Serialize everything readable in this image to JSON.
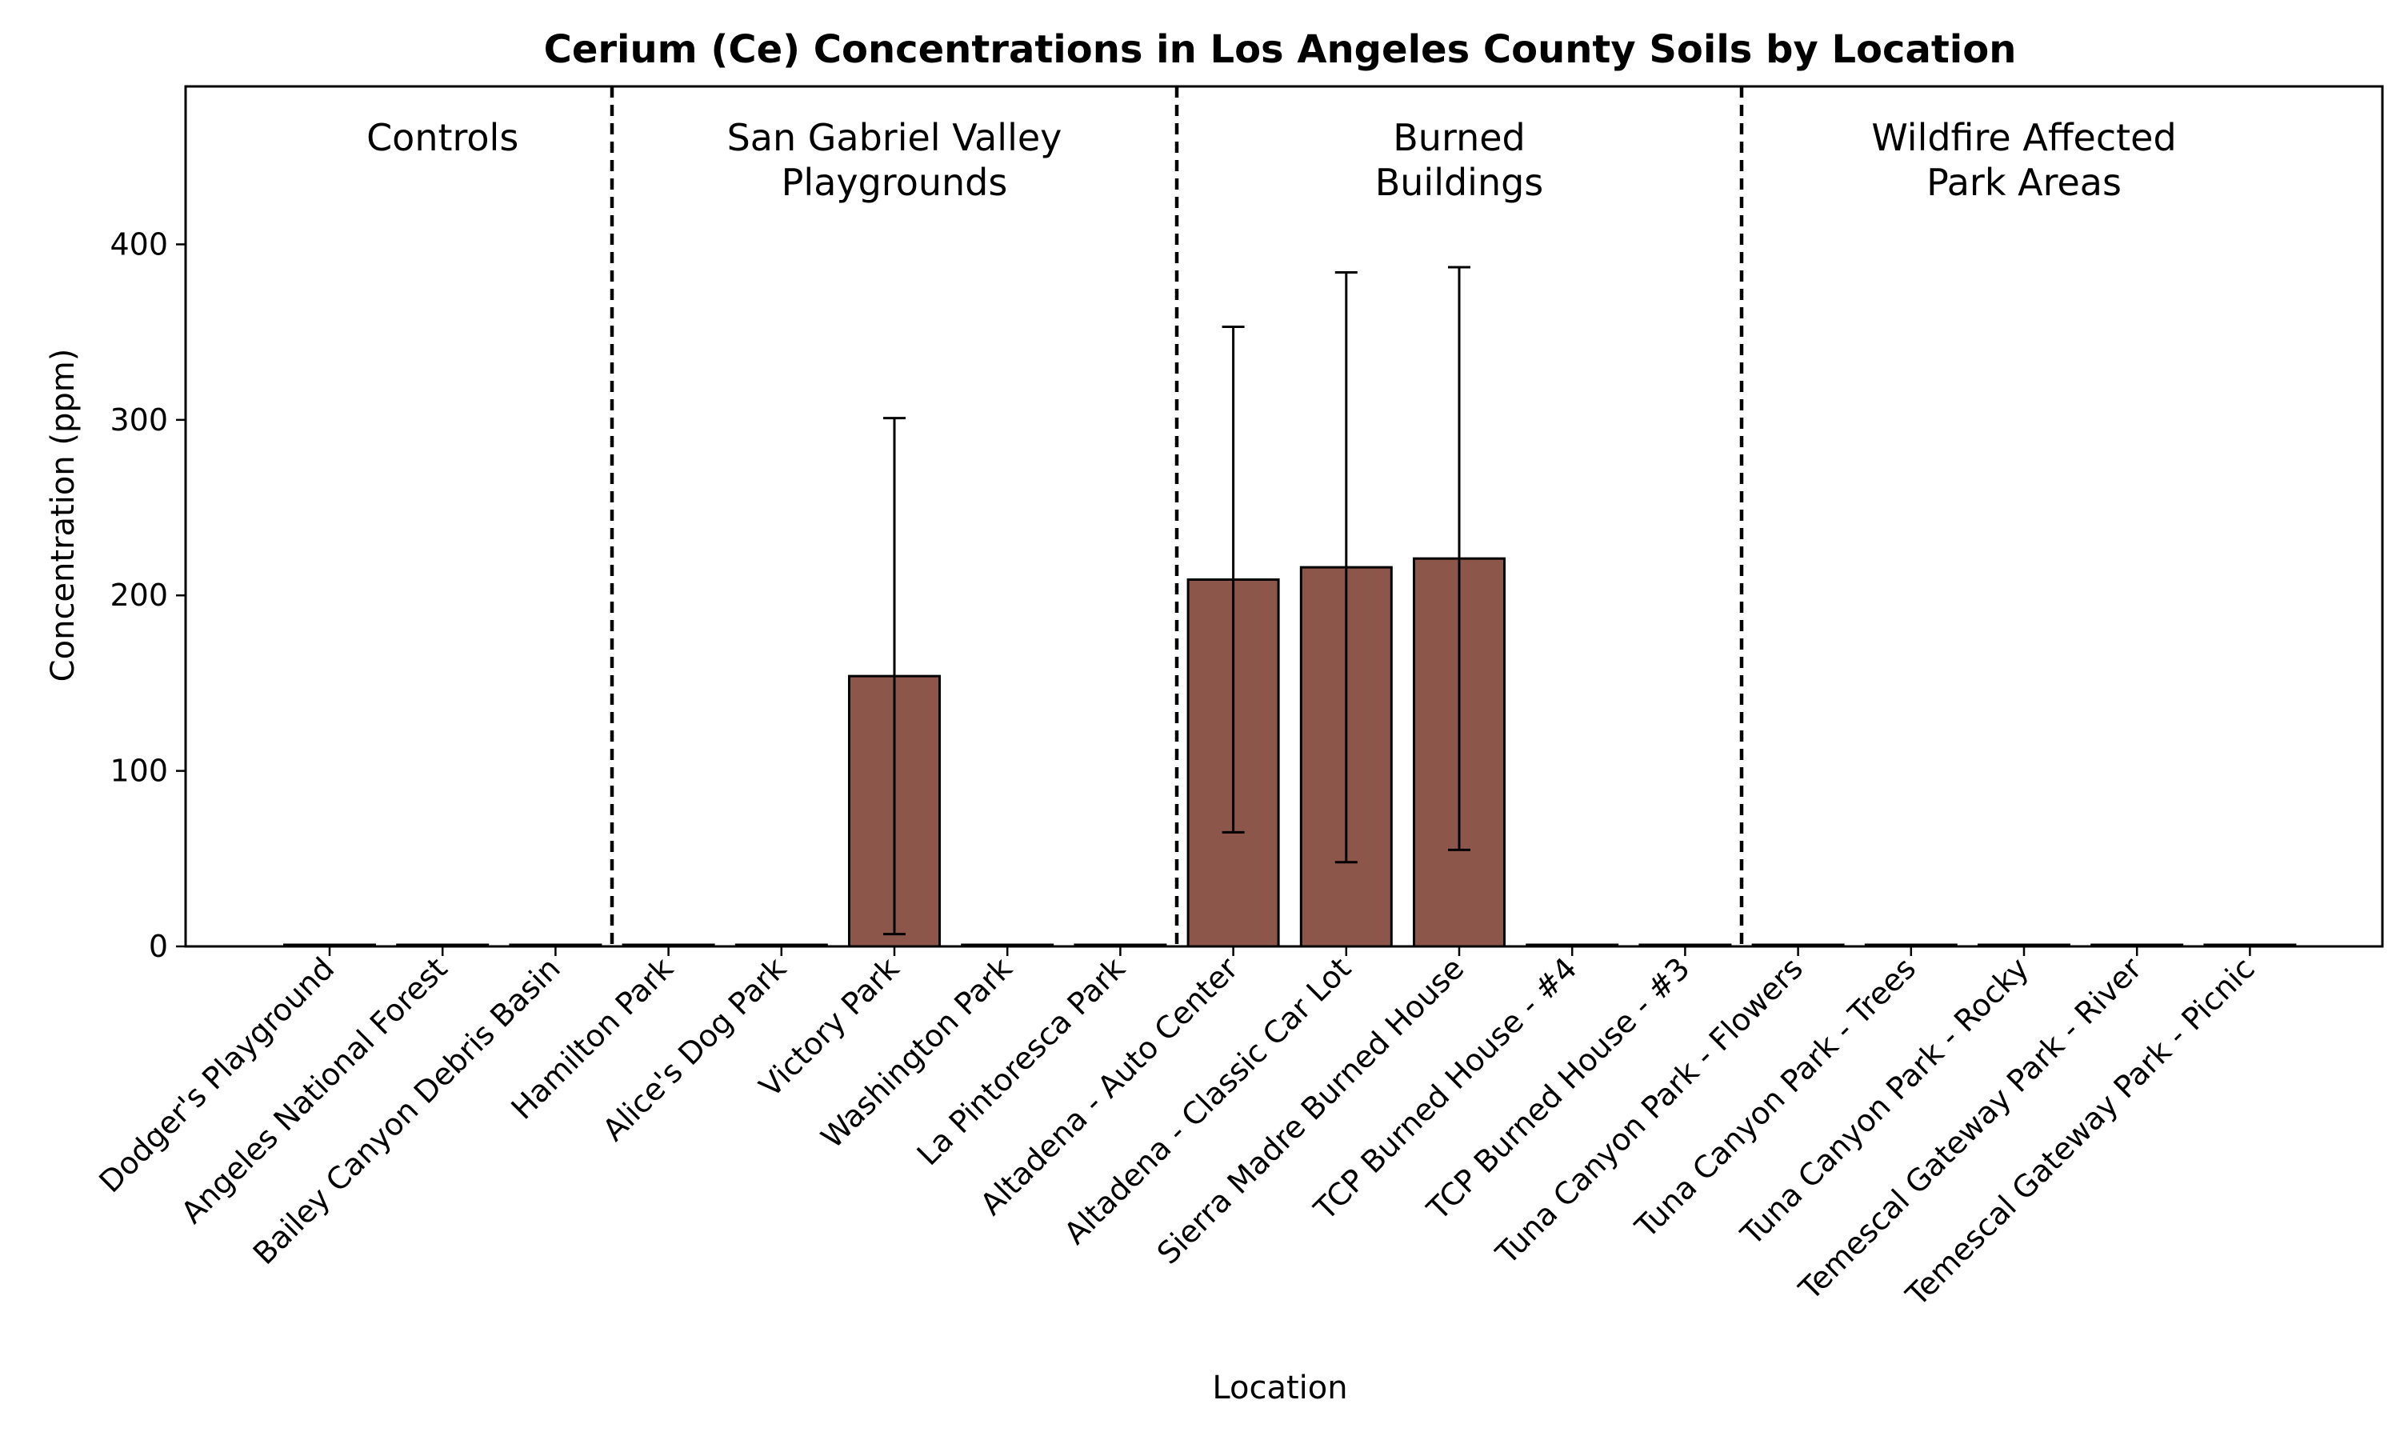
{
  "chart_data": {
    "type": "bar",
    "title": "Cerium (Ce) Concentrations in Los Angeles County Soils by Location",
    "xlabel": "Location",
    "ylabel": "Concentration (ppm)",
    "ylim": [
      0,
      490
    ],
    "yticks": [
      0,
      100,
      200,
      300,
      400
    ],
    "grid": false,
    "bar_color": "#8c564b",
    "categories": [
      "Dodger's Playground",
      "Angeles National Forest",
      "Bailey Canyon Debris Basin",
      "Hamilton Park",
      "Alice's Dog Park",
      "Victory Park",
      "Washington Park",
      "La Pintoresca Park",
      "Altadena - Auto Center",
      "Altadena - Classic Car Lot",
      "Sierra Madre Burned House",
      "TCP Burned House - #4",
      "TCP Burned House - #3",
      "Tuna Canyon Park - Flowers",
      "Tuna Canyon Park - Trees",
      "Tuna Canyon Park - Rocky",
      "Temescal Gateway Park - River",
      "Temescal Gateway Park - Picnic"
    ],
    "values": [
      0,
      0,
      0,
      0,
      0,
      154,
      0,
      0,
      209,
      216,
      221,
      0,
      0,
      0,
      0,
      0,
      0,
      0
    ],
    "errors": [
      0,
      0,
      0,
      0,
      0,
      147,
      0,
      0,
      144,
      168,
      166,
      0,
      0,
      0,
      0,
      0,
      0,
      0
    ],
    "groups": [
      {
        "label_lines": [
          "Controls"
        ],
        "start": 0,
        "end": 2
      },
      {
        "label_lines": [
          "San Gabriel Valley",
          "Playgrounds"
        ],
        "start": 3,
        "end": 7
      },
      {
        "label_lines": [
          "Burned",
          "Buildings"
        ],
        "start": 8,
        "end": 12
      },
      {
        "label_lines": [
          "Wildfire Affected",
          "Park Areas"
        ],
        "start": 13,
        "end": 17
      }
    ]
  }
}
